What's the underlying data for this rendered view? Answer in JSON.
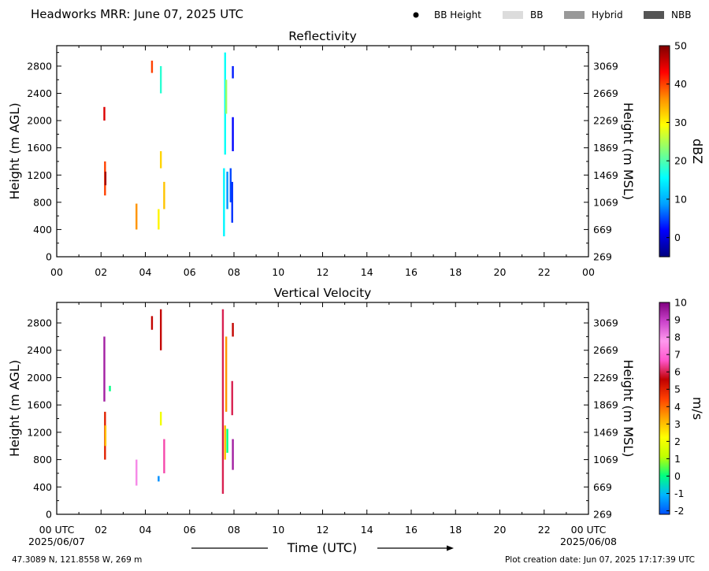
{
  "header": {
    "title": "Headworks MRR:  June 07, 2025 UTC",
    "legend": [
      {
        "label": "BB Height",
        "kind": "dot",
        "color": "#000000"
      },
      {
        "label": "BB",
        "kind": "box",
        "color": "#dcdcdc"
      },
      {
        "label": "Hybrid",
        "kind": "box",
        "color": "#999999"
      },
      {
        "label": "NBB",
        "kind": "box",
        "color": "#555555"
      }
    ]
  },
  "footer": {
    "location": "47.3089 N, 121.8558 W, 269 m",
    "created": "Plot creation date: Jun 07, 2025 17:17:39 UTC",
    "date_start": "2025/06/07",
    "date_end": "2025/06/08",
    "time_label": "Time (UTC)"
  },
  "chart_data": [
    {
      "type": "heatmap",
      "title": "Reflectivity",
      "xlabel": "",
      "ylabel": "Height (m AGL)",
      "y2label": "Height (m MSL)",
      "xlim": [
        0,
        24
      ],
      "ylim": [
        0,
        3100
      ],
      "x_ticks": [
        "00",
        "02",
        "04",
        "06",
        "08",
        "10",
        "12",
        "14",
        "16",
        "18",
        "20",
        "22",
        "00"
      ],
      "y_ticks": [
        0,
        400,
        800,
        1200,
        1600,
        2000,
        2400,
        2800
      ],
      "y2_ticks": [
        "269",
        "669",
        "1069",
        "1469",
        "1869",
        "2269",
        "2669",
        "3069"
      ],
      "colorbar": {
        "label": "dBZ",
        "min": -5,
        "max": 50,
        "ticks": [
          "0",
          "10",
          "20",
          "30",
          "40",
          "50"
        ],
        "tick_values": [
          0,
          10,
          20,
          30,
          40,
          50
        ],
        "stops": [
          "#00007f",
          "#0000ff",
          "#00a0ff",
          "#00ffff",
          "#7fff7f",
          "#ffff00",
          "#ff9000",
          "#ff0000",
          "#7f0000"
        ]
      },
      "grid": false,
      "echoes": [
        {
          "t": 2.15,
          "h0": 2000,
          "h1": 2200,
          "v": 45
        },
        {
          "t": 2.18,
          "h0": 900,
          "h1": 1400,
          "v": 40
        },
        {
          "t": 2.2,
          "h0": 1050,
          "h1": 1250,
          "v": 48
        },
        {
          "t": 3.6,
          "h0": 400,
          "h1": 780,
          "v": 36
        },
        {
          "t": 4.3,
          "h0": 2700,
          "h1": 2880,
          "v": 40
        },
        {
          "t": 4.6,
          "h0": 400,
          "h1": 700,
          "v": 30
        },
        {
          "t": 4.7,
          "h0": 1300,
          "h1": 1550,
          "v": 32
        },
        {
          "t": 4.7,
          "h0": 2400,
          "h1": 2800,
          "v": 18
        },
        {
          "t": 4.85,
          "h0": 700,
          "h1": 1100,
          "v": 33
        },
        {
          "t": 7.55,
          "h0": 300,
          "h1": 1300,
          "v": 15
        },
        {
          "t": 7.6,
          "h0": 1500,
          "h1": 3000,
          "v": 16
        },
        {
          "t": 7.65,
          "h0": 2100,
          "h1": 2600,
          "v": 24
        },
        {
          "t": 7.7,
          "h0": 700,
          "h1": 1250,
          "v": 8
        },
        {
          "t": 7.85,
          "h0": 800,
          "h1": 1300,
          "v": 5
        },
        {
          "t": 7.92,
          "h0": 500,
          "h1": 1100,
          "v": 4
        },
        {
          "t": 7.95,
          "h0": 1550,
          "h1": 2050,
          "v": 2
        },
        {
          "t": 7.95,
          "h0": 2620,
          "h1": 2800,
          "v": 3
        }
      ]
    },
    {
      "type": "heatmap",
      "title": "Vertical Velocity",
      "xlabel": "Time (UTC)",
      "ylabel": "Height (m AGL)",
      "y2label": "Height (m MSL)",
      "xlim": [
        0,
        24
      ],
      "ylim": [
        0,
        3100
      ],
      "x_ticks": [
        "00 UTC",
        "02",
        "04",
        "06",
        "08",
        "10",
        "12",
        "14",
        "16",
        "18",
        "20",
        "22",
        "00 UTC"
      ],
      "y_ticks": [
        0,
        400,
        800,
        1200,
        1600,
        2000,
        2400,
        2800
      ],
      "y2_ticks": [
        "269",
        "669",
        "1069",
        "1469",
        "1869",
        "2269",
        "2669",
        "3069"
      ],
      "colorbar": {
        "label": "m/s",
        "min": -2.2,
        "max": 10,
        "ticks": [
          "-2",
          "-1",
          "0",
          "1",
          "2",
          "3",
          "4",
          "5",
          "6",
          "7",
          "8",
          "9",
          "10"
        ],
        "tick_values": [
          -2,
          -1,
          0,
          1,
          2,
          3,
          4,
          5,
          6,
          7,
          8,
          9,
          10
        ],
        "stops": [
          "#0050ff",
          "#00b4ff",
          "#00ff80",
          "#c0ff00",
          "#ffff00",
          "#ffa500",
          "#ff4000",
          "#c00000",
          "#ff55cc",
          "#ff99ee",
          "#cc44cc",
          "#800080"
        ]
      },
      "grid": false,
      "echoes": [
        {
          "t": 2.15,
          "h0": 1650,
          "h1": 2600,
          "v": 9.5
        },
        {
          "t": 2.18,
          "h0": 800,
          "h1": 1500,
          "v": 5
        },
        {
          "t": 2.2,
          "h0": 1000,
          "h1": 1300,
          "v": 3
        },
        {
          "t": 2.4,
          "h0": 1800,
          "h1": 1880,
          "v": 0
        },
        {
          "t": 3.6,
          "h0": 420,
          "h1": 800,
          "v": 8
        },
        {
          "t": 4.3,
          "h0": 2700,
          "h1": 2900,
          "v": 5.5
        },
        {
          "t": 4.6,
          "h0": 480,
          "h1": 560,
          "v": -1.5
        },
        {
          "t": 4.7,
          "h0": 1300,
          "h1": 1500,
          "v": 2
        },
        {
          "t": 4.7,
          "h0": 2400,
          "h1": 3000,
          "v": 5.5
        },
        {
          "t": 4.85,
          "h0": 600,
          "h1": 1100,
          "v": 6.5
        },
        {
          "t": 7.5,
          "h0": 300,
          "h1": 3000,
          "v": 6
        },
        {
          "t": 7.6,
          "h0": 800,
          "h1": 1300,
          "v": 3
        },
        {
          "t": 7.65,
          "h0": 1500,
          "h1": 2600,
          "v": 3.5
        },
        {
          "t": 7.7,
          "h0": 900,
          "h1": 1250,
          "v": 0
        },
        {
          "t": 7.95,
          "h0": 650,
          "h1": 1100,
          "v": 9.5
        },
        {
          "t": 7.92,
          "h0": 1450,
          "h1": 1950,
          "v": 6
        },
        {
          "t": 7.95,
          "h0": 2600,
          "h1": 2800,
          "v": 5.5
        }
      ]
    }
  ]
}
